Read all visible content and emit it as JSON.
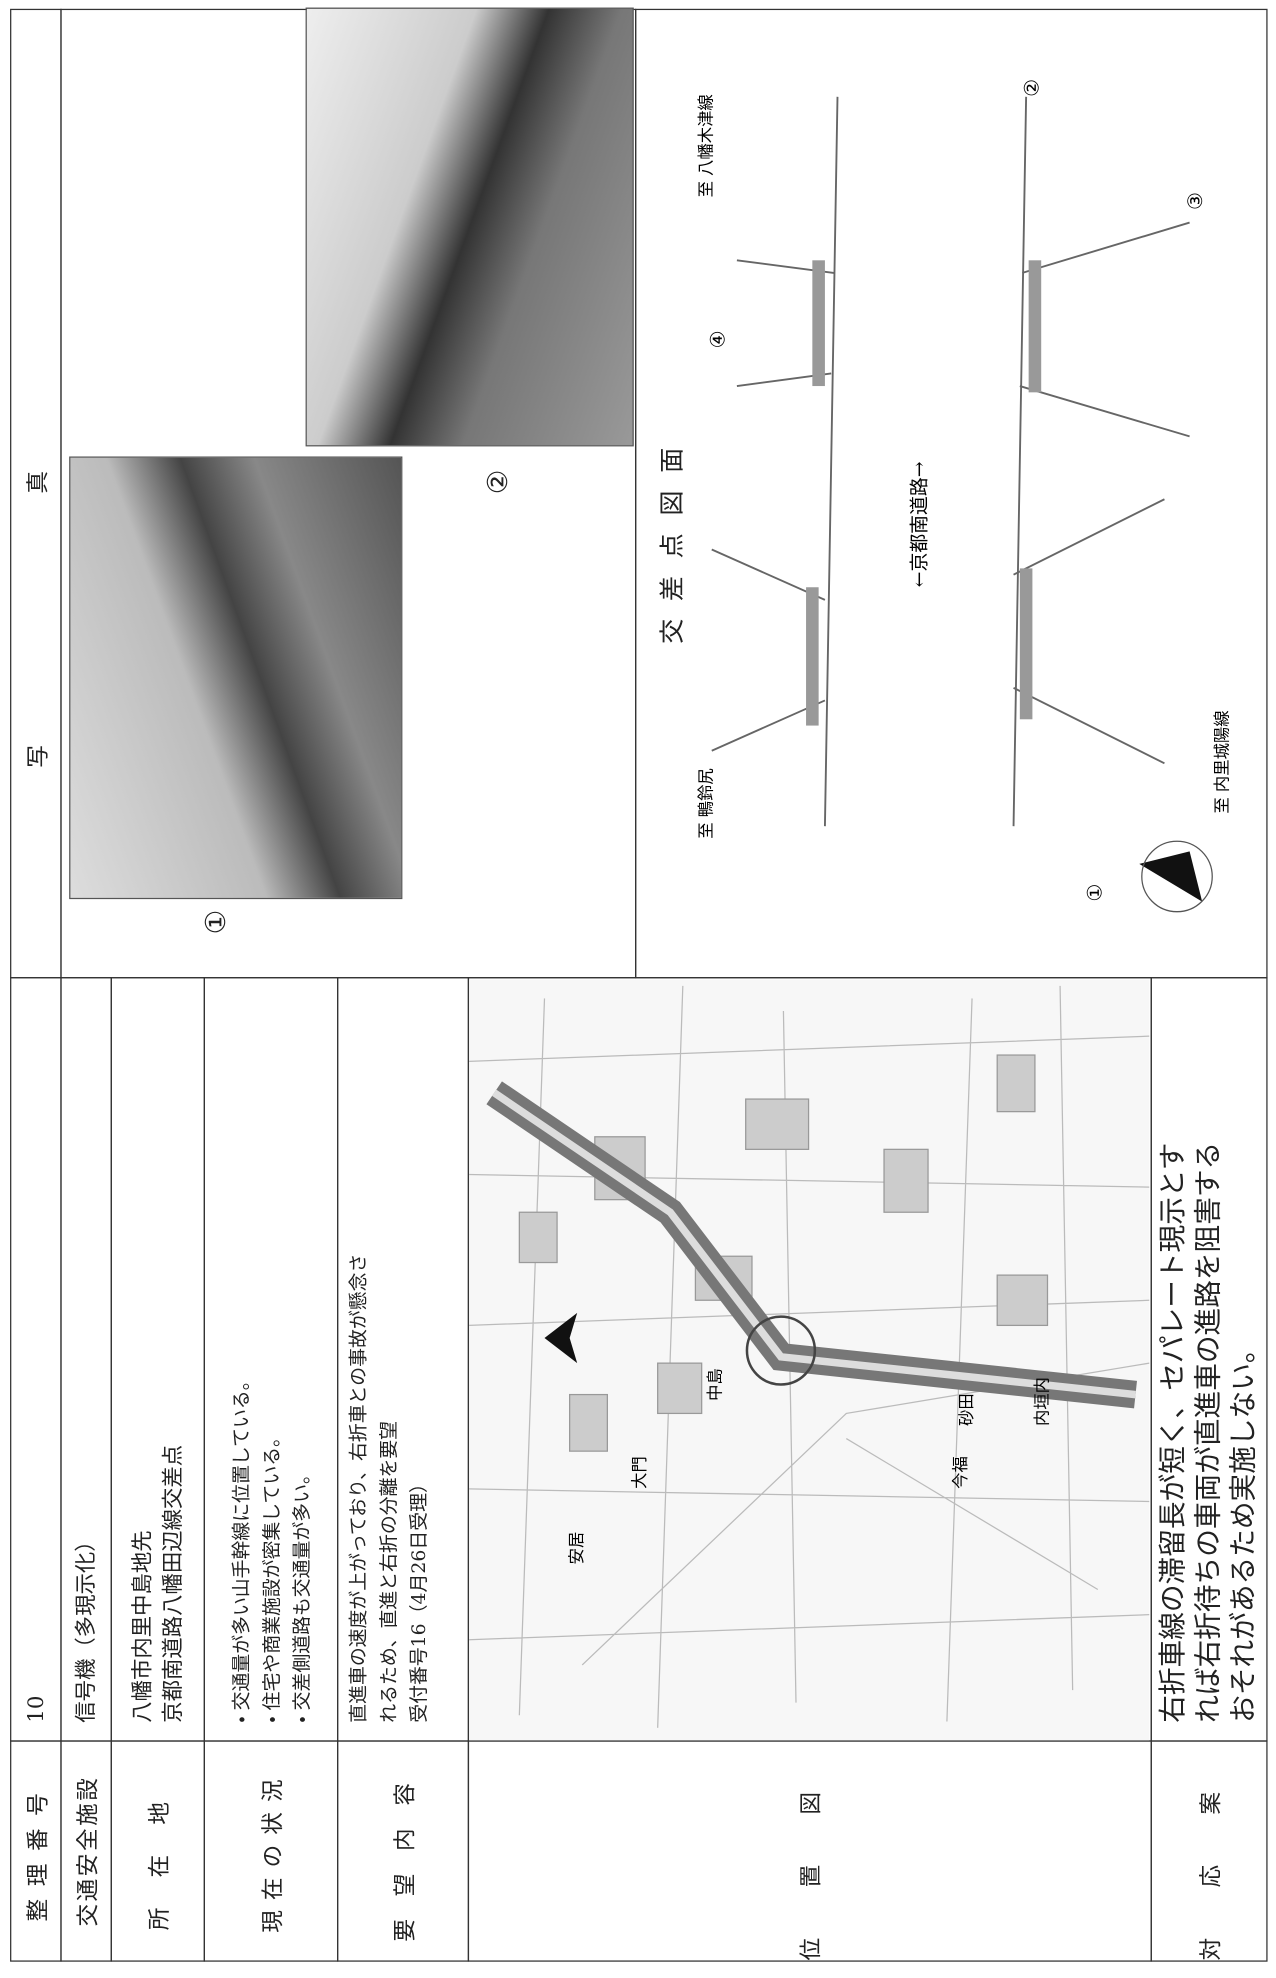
{
  "form": {
    "rows": [
      {
        "label": "整理番号",
        "value": "10"
      },
      {
        "label": "交通安全施設",
        "value": "信号機（多現示化）"
      },
      {
        "label": "所在地",
        "lines": [
          "八幡市内里中島地先",
          "京都南道路八幡田辺線交差点"
        ]
      },
      {
        "label": "現在の状況",
        "lines": [
          "・ 交通量が多い山手幹線に位置している。",
          "・ 住宅や商業施設が密集している。",
          "・ 交差側道路も交通量が多い。"
        ]
      },
      {
        "label": "要望内容",
        "lines": [
          "直進車の速度が上がっており、右折車との事故が懸念さ",
          "れるため、直進と右折の分離を要望",
          "受付番号16（4月26日受理）"
        ]
      },
      {
        "label": "位置図"
      },
      {
        "label": "対応案",
        "lines": [
          "右折車線の滞留長が短く、セパレート現示とす",
          "れば右折待ちの車両が直進車の進路を阻害する",
          "おそれがあるため実施しない。"
        ]
      }
    ]
  },
  "photos": {
    "header": "写真",
    "items": [
      {
        "label": "①"
      },
      {
        "label": "②"
      }
    ]
  },
  "diagram": {
    "title": "交差点図面",
    "road": "←京都南道路→",
    "markers": [
      "①",
      "②",
      "③",
      "④"
    ],
    "destinations": [
      "至 鴨鈴尻",
      "至 八幡木津線",
      "至 内里城陽線"
    ]
  },
  "map": {
    "labels": [
      "中島",
      "大門",
      "今福",
      "砂田",
      "内垣内",
      "安居"
    ]
  }
}
